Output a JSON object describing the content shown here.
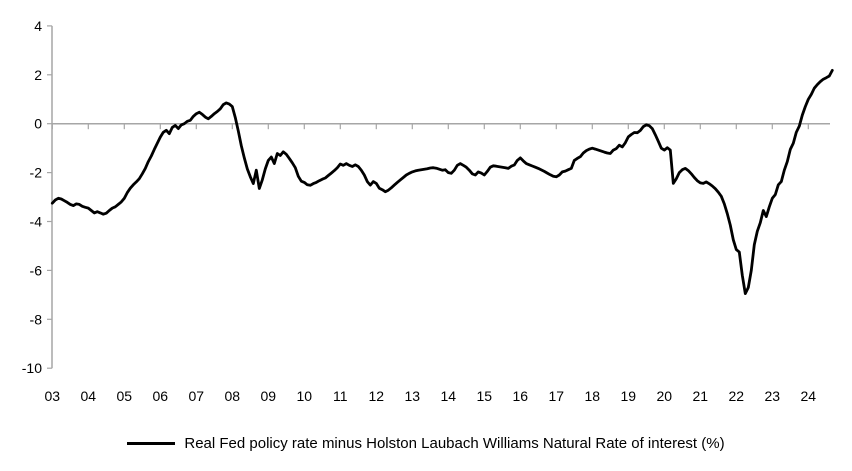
{
  "chart_data": {
    "type": "line",
    "title": "",
    "frequency": "monthly",
    "start": "2003-01",
    "end": "2024-09",
    "y_axis": {
      "tick_labels": [
        "4",
        "2",
        "0",
        "-2",
        "-4",
        "-6",
        "-8",
        "-10"
      ],
      "ylim": [
        -10,
        4
      ],
      "zero_gridline": true
    },
    "x_axis": {
      "tick_labels": [
        "03",
        "04",
        "05",
        "06",
        "07",
        "08",
        "09",
        "10",
        "11",
        "12",
        "13",
        "14",
        "15",
        "16",
        "17",
        "18",
        "19",
        "20",
        "21",
        "22",
        "23",
        "24"
      ]
    },
    "legend_position": "bottom",
    "colors": {
      "series": "#000000",
      "axis": "#a6a6a6",
      "zero_line": "#a6a6a6",
      "text": "#000000",
      "background": "#ffffff"
    },
    "series": [
      {
        "name": "Real Fed policy rate minus Holston Laubach Williams Natural Rate of interest (%)",
        "color": "#000000",
        "values": [
          -3.25,
          -3.12,
          -3.05,
          -3.08,
          -3.15,
          -3.22,
          -3.3,
          -3.35,
          -3.28,
          -3.3,
          -3.38,
          -3.42,
          -3.45,
          -3.55,
          -3.65,
          -3.6,
          -3.65,
          -3.7,
          -3.66,
          -3.55,
          -3.45,
          -3.4,
          -3.3,
          -3.2,
          -3.05,
          -2.82,
          -2.64,
          -2.5,
          -2.38,
          -2.25,
          -2.05,
          -1.83,
          -1.55,
          -1.32,
          -1.05,
          -0.8,
          -0.55,
          -0.35,
          -0.27,
          -0.41,
          -0.15,
          -0.07,
          -0.2,
          -0.05,
          0.0,
          0.1,
          0.14,
          0.3,
          0.41,
          0.47,
          0.38,
          0.27,
          0.2,
          0.3,
          0.41,
          0.5,
          0.61,
          0.78,
          0.85,
          0.8,
          0.7,
          0.25,
          -0.3,
          -0.9,
          -1.4,
          -1.85,
          -2.17,
          -2.45,
          -1.9,
          -2.65,
          -2.3,
          -1.85,
          -1.5,
          -1.36,
          -1.63,
          -1.22,
          -1.3,
          -1.15,
          -1.25,
          -1.42,
          -1.6,
          -1.8,
          -2.15,
          -2.35,
          -2.4,
          -2.5,
          -2.52,
          -2.45,
          -2.4,
          -2.33,
          -2.27,
          -2.22,
          -2.12,
          -2.02,
          -1.92,
          -1.8,
          -1.65,
          -1.7,
          -1.63,
          -1.7,
          -1.75,
          -1.68,
          -1.75,
          -1.9,
          -2.1,
          -2.37,
          -2.51,
          -2.37,
          -2.44,
          -2.64,
          -2.7,
          -2.78,
          -2.72,
          -2.62,
          -2.51,
          -2.4,
          -2.3,
          -2.2,
          -2.1,
          -2.03,
          -1.97,
          -1.93,
          -1.9,
          -1.88,
          -1.86,
          -1.84,
          -1.81,
          -1.8,
          -1.82,
          -1.86,
          -1.9,
          -1.88,
          -2.0,
          -2.03,
          -1.9,
          -1.7,
          -1.63,
          -1.7,
          -1.78,
          -1.9,
          -2.05,
          -2.1,
          -1.97,
          -2.02,
          -2.1,
          -1.95,
          -1.78,
          -1.72,
          -1.74,
          -1.76,
          -1.78,
          -1.8,
          -1.83,
          -1.74,
          -1.69,
          -1.5,
          -1.4,
          -1.52,
          -1.63,
          -1.68,
          -1.73,
          -1.78,
          -1.83,
          -1.89,
          -1.95,
          -2.02,
          -2.09,
          -2.15,
          -2.17,
          -2.1,
          -1.97,
          -1.94,
          -1.88,
          -1.83,
          -1.5,
          -1.42,
          -1.35,
          -1.2,
          -1.1,
          -1.04,
          -1.0,
          -1.04,
          -1.08,
          -1.12,
          -1.16,
          -1.2,
          -1.22,
          -1.08,
          -1.02,
          -0.88,
          -0.95,
          -0.78,
          -0.54,
          -0.44,
          -0.36,
          -0.37,
          -0.28,
          -0.12,
          -0.05,
          -0.08,
          -0.2,
          -0.45,
          -0.72,
          -1.0,
          -1.08,
          -0.98,
          -1.08,
          -2.44,
          -2.25,
          -2.0,
          -1.88,
          -1.83,
          -1.92,
          -2.05,
          -2.2,
          -2.33,
          -2.42,
          -2.44,
          -2.38,
          -2.46,
          -2.55,
          -2.66,
          -2.8,
          -2.97,
          -3.28,
          -3.68,
          -4.15,
          -4.75,
          -5.15,
          -5.25,
          -6.2,
          -6.95,
          -6.7,
          -6.0,
          -4.95,
          -4.4,
          -4.05,
          -3.55,
          -3.8,
          -3.4,
          -3.05,
          -2.9,
          -2.5,
          -2.37,
          -1.9,
          -1.55,
          -1.05,
          -0.8,
          -0.35,
          -0.1,
          0.35,
          0.7,
          1.0,
          1.2,
          1.45,
          1.6,
          1.72,
          1.82,
          1.88,
          1.95,
          2.18
        ]
      }
    ]
  }
}
